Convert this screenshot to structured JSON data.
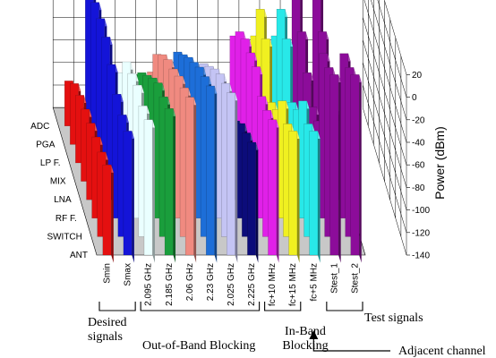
{
  "chart_data": {
    "type": "bar",
    "subtype": "3d-bar",
    "y_axis": {
      "title": "Power (dBm)",
      "ticks": [
        20,
        0,
        -20,
        -40,
        -60,
        -80,
        -100,
        -120,
        -140
      ],
      "range": [
        -140,
        20
      ]
    },
    "categories": [
      "Smin",
      "Smax",
      "2.095 GHz",
      "2.185 GHz",
      "2.06 GHz",
      "2.23 GHz",
      "2.025 GHz",
      "2.225 GHz",
      "fc+10 MHz",
      "fc+15 MHz",
      "fc+5 MHz",
      "Stest_1",
      "Stest_2"
    ],
    "depth_axis": [
      "ANT",
      "SWITCH",
      "RF F.",
      "LNA",
      "MIX",
      "LP F.",
      "PGA",
      "ADC"
    ],
    "category_colors": [
      "#e41010",
      "#1414d8",
      "#eaffff",
      "#1a9e3c",
      "#f08a80",
      "#1d6ed8",
      "#c4c4f4",
      "#0c0c7a",
      "#e020e8",
      "#f0f020",
      "#28e8e8",
      "#8c0c9a",
      "#8c0c9a"
    ],
    "values_dbm": [
      [
        -60,
        -65,
        -68,
        -72,
        -76,
        -80,
        -86,
        -100
      ],
      [
        -30,
        -32,
        -30,
        -20,
        -12,
        -12,
        -14,
        -14
      ],
      [
        -20,
        -24,
        -22,
        -28,
        -34,
        -60,
        -100,
        -110
      ],
      [
        -10,
        -16,
        -20,
        -32,
        -46,
        -60,
        -78,
        -100
      ],
      [
        0,
        -8,
        -14,
        -24,
        -32,
        -44,
        -60,
        -92
      ],
      [
        10,
        2,
        -6,
        -18,
        -30,
        -44,
        -58,
        -88
      ],
      [
        4,
        -4,
        -12,
        -24,
        -38,
        -52,
        -72,
        -108
      ],
      [
        -40,
        -48,
        -56,
        -70,
        -70,
        -74,
        -80,
        -90
      ],
      [
        -20,
        -28,
        -32,
        -22,
        -26,
        -30,
        -40,
        -60
      ],
      [
        -30,
        -40,
        -36,
        -60,
        -70,
        -30,
        -20,
        -60
      ],
      [
        -30,
        -40,
        -36,
        -60,
        -70,
        -30,
        -20,
        -60
      ],
      [
        20,
        10,
        6,
        -70,
        -74,
        -60,
        -40,
        -20
      ],
      [
        20,
        10,
        6,
        -70,
        -74,
        -60,
        -40,
        -20
      ]
    ]
  },
  "group_labels": {
    "desired": "Desired signals",
    "oob": "Out-of-Band Blocking",
    "inband": "In-Band Blocking",
    "adjacent": "Adjacent channel",
    "test": "Test signals"
  },
  "colors": {
    "grid": "#000000",
    "floor": "#c8c8c8",
    "background": "#ffffff"
  }
}
